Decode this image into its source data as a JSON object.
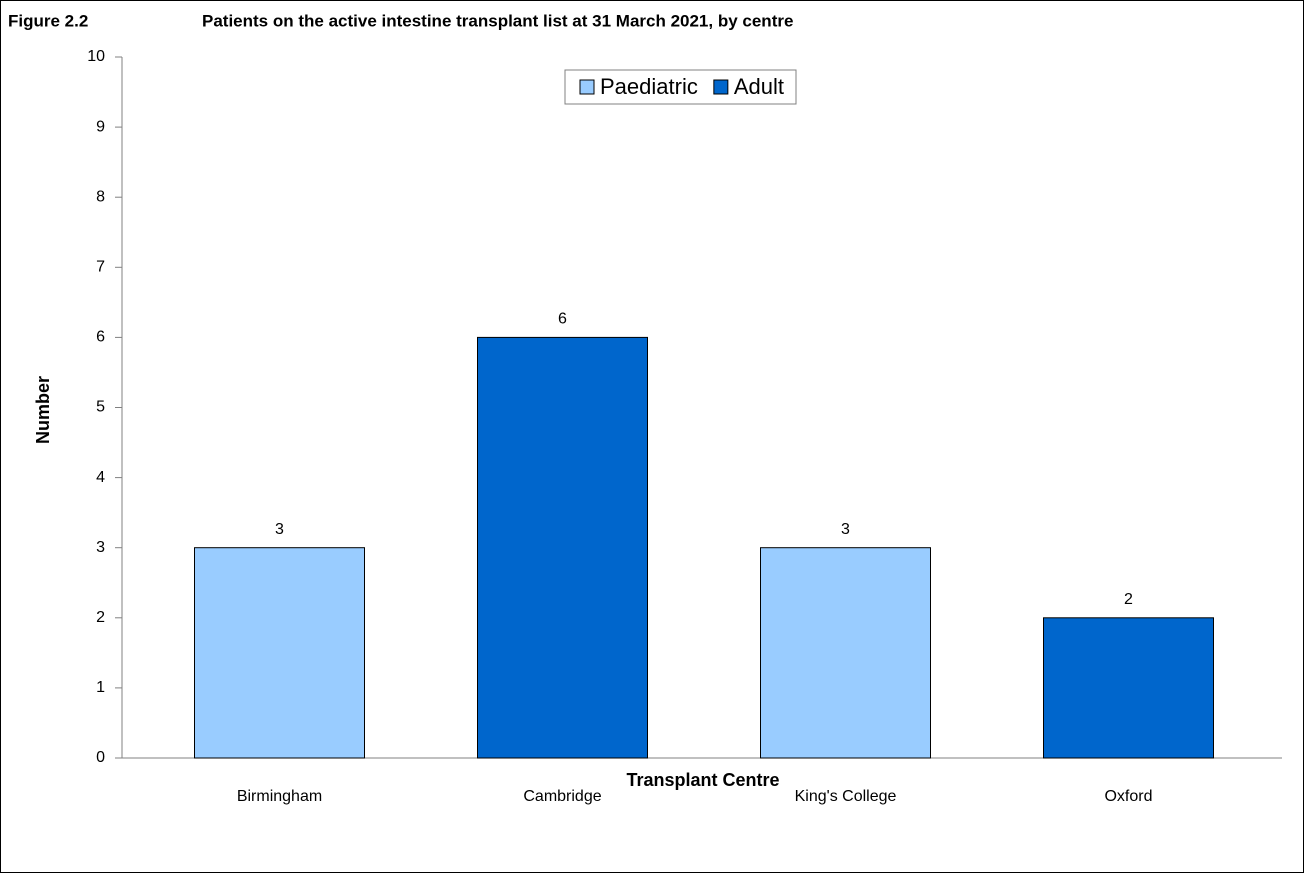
{
  "chart_data": {
    "type": "bar",
    "figure_label": "Figure 2.2",
    "title": "Patients on the active intestine transplant list at 31 March 2021, by centre",
    "x_label": "Transplant Centre",
    "y_label": "Number",
    "categories": [
      "Birmingham",
      "Cambridge",
      "King's College",
      "Oxford"
    ],
    "series": [
      {
        "name": "Paediatric",
        "color": "#99ccff",
        "values": [
          3,
          null,
          3,
          null
        ]
      },
      {
        "name": "Adult",
        "color": "#0066cc",
        "values": [
          null,
          6,
          null,
          2
        ]
      }
    ],
    "ylim": [
      0,
      10
    ],
    "yticks": [
      0,
      1,
      2,
      3,
      4,
      5,
      6,
      7,
      8,
      9,
      10
    ],
    "grid": false,
    "legend": "top"
  }
}
